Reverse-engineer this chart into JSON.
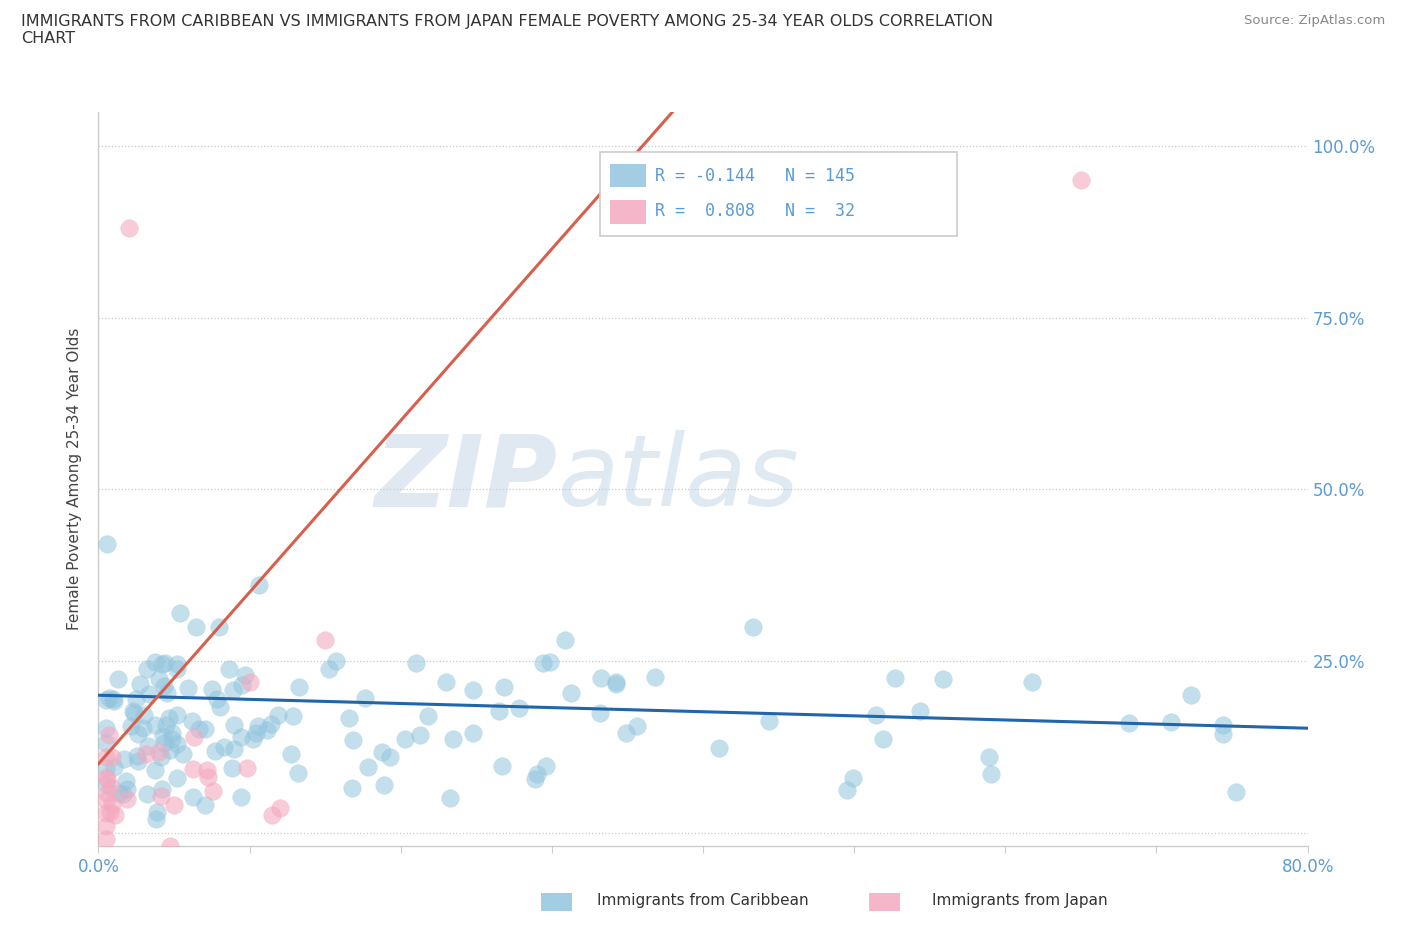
{
  "title": "IMMIGRANTS FROM CARIBBEAN VS IMMIGRANTS FROM JAPAN FEMALE POVERTY AMONG 25-34 YEAR OLDS CORRELATION\nCHART",
  "ylabel": "Female Poverty Among 25-34 Year Olds",
  "source": "Source: ZipAtlas.com",
  "xlim": [
    0.0,
    0.8
  ],
  "ylim": [
    -0.02,
    1.05
  ],
  "x_ticks": [
    0.0,
    0.1,
    0.2,
    0.3,
    0.4,
    0.5,
    0.6,
    0.7,
    0.8
  ],
  "x_tick_labels": [
    "0.0%",
    "",
    "",
    "",
    "",
    "",
    "",
    "",
    "80.0%"
  ],
  "y_ticks": [
    0.0,
    0.25,
    0.5,
    0.75,
    1.0
  ],
  "y_tick_labels": [
    "",
    "25.0%",
    "50.0%",
    "75.0%",
    "100.0%"
  ],
  "caribbean_color": "#92c5de",
  "japan_color": "#f4a9c0",
  "caribbean_line_color": "#2166ac",
  "japan_line_color": "#d6604d",
  "watermark_ZIP": "ZIP",
  "watermark_atlas": "atlas",
  "legend_R_caribbean": "-0.144",
  "legend_N_caribbean": "145",
  "legend_R_japan": "0.808",
  "legend_N_japan": "32"
}
